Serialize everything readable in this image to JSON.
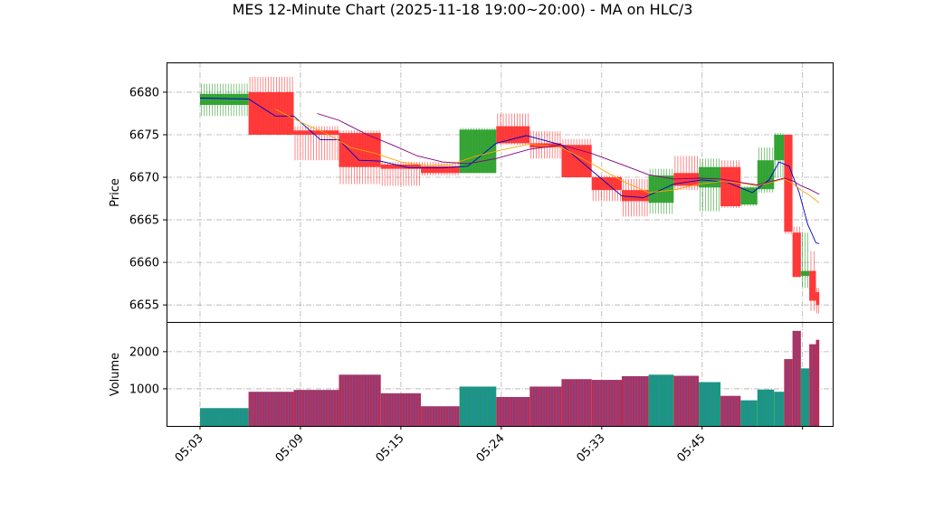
{
  "chart_data": {
    "type": "candlestick",
    "title": "MES 12-Minute Chart (2025-11-18 19:00~20:00) - MA on HLC/3",
    "price_panel": {
      "ylabel": "Price",
      "yticks": [
        6655,
        6660,
        6665,
        6670,
        6675,
        6680
      ],
      "ylim": [
        6653,
        6683.5
      ],
      "grid": true
    },
    "volume_panel": {
      "ylabel": "Volume",
      "yticks": [
        1000,
        2000
      ],
      "ylim": [
        0,
        2800
      ],
      "grid": true
    },
    "x_tick_labels": [
      "05:03",
      "05:09",
      "05:15",
      "05:24",
      "05:33",
      "05:45",
      ""
    ],
    "x_tick_positions": [
      0,
      6,
      12,
      18,
      24,
      30,
      36
    ],
    "xlim": [
      -2,
      37.8
    ],
    "colors": {
      "up": "#2ca02c",
      "down": "#ff3030",
      "up_volume": "#1a9a7a",
      "down_volume": "#b0305a",
      "ma_fast": "#0000cc",
      "ma_mid": "#ffa500",
      "ma_slow": "#800080"
    },
    "candles": [
      {
        "x0": 0,
        "x1": 2.9,
        "open": 6678.5,
        "high": 6681,
        "low": 6677.2,
        "close": 6679.8,
        "volume": 480
      },
      {
        "x0": 2.9,
        "x1": 5.6,
        "open": 6680,
        "high": 6681.8,
        "low": 6675,
        "close": 6675,
        "volume": 920
      },
      {
        "x0": 5.6,
        "x1": 8.3,
        "open": 6675.5,
        "high": 6676,
        "low": 6672,
        "close": 6675,
        "volume": 970
      },
      {
        "x0": 8.3,
        "x1": 10.8,
        "open": 6675.2,
        "high": 6675.5,
        "low": 6669.2,
        "close": 6671.2,
        "volume": 1380
      },
      {
        "x0": 10.8,
        "x1": 13.2,
        "open": 6671.5,
        "high": 6671.8,
        "low": 6669,
        "close": 6671,
        "volume": 880
      },
      {
        "x0": 13.2,
        "x1": 15.5,
        "open": 6671.3,
        "high": 6671.8,
        "low": 6670.2,
        "close": 6670.5,
        "volume": 530
      },
      {
        "x0": 15.5,
        "x1": 17.7,
        "open": 6670.5,
        "high": 6675.8,
        "low": 6670.5,
        "close": 6675.6,
        "volume": 1060
      },
      {
        "x0": 17.7,
        "x1": 19.7,
        "open": 6676,
        "high": 6677.5,
        "low": 6673.8,
        "close": 6674,
        "volume": 780
      },
      {
        "x0": 19.7,
        "x1": 21.6,
        "open": 6674,
        "high": 6675.4,
        "low": 6672.2,
        "close": 6673.5,
        "volume": 1060
      },
      {
        "x0": 21.6,
        "x1": 23.4,
        "open": 6673.8,
        "high": 6674.5,
        "low": 6670,
        "close": 6670,
        "volume": 1260
      },
      {
        "x0": 23.4,
        "x1": 25.2,
        "open": 6670,
        "high": 6670.2,
        "low": 6667.2,
        "close": 6668.5,
        "volume": 1240
      },
      {
        "x0": 25.2,
        "x1": 26.8,
        "open": 6668.5,
        "high": 6669.8,
        "low": 6665.4,
        "close": 6667.2,
        "volume": 1340
      },
      {
        "x0": 26.8,
        "x1": 28.3,
        "open": 6667,
        "high": 6671,
        "low": 6665.7,
        "close": 6670.2,
        "volume": 1380
      },
      {
        "x0": 28.3,
        "x1": 29.8,
        "open": 6670.5,
        "high": 6672.5,
        "low": 6668.5,
        "close": 6669,
        "volume": 1350
      },
      {
        "x0": 29.8,
        "x1": 31.1,
        "open": 6668.8,
        "high": 6672.2,
        "low": 6666,
        "close": 6671.2,
        "volume": 1180
      },
      {
        "x0": 31.1,
        "x1": 32.3,
        "open": 6671.2,
        "high": 6672,
        "low": 6666.4,
        "close": 6666.6,
        "volume": 810
      },
      {
        "x0": 32.3,
        "x1": 33.3,
        "open": 6666.8,
        "high": 6669,
        "low": 6666.6,
        "close": 6668.8,
        "volume": 690
      },
      {
        "x0": 33.3,
        "x1": 34.3,
        "open": 6668.6,
        "high": 6673.5,
        "low": 6668.2,
        "close": 6672,
        "volume": 980
      },
      {
        "x0": 34.3,
        "x1": 34.9,
        "open": 6672,
        "high": 6675.2,
        "low": 6670,
        "close": 6675,
        "volume": 920
      },
      {
        "x0": 34.9,
        "x1": 35.4,
        "open": 6675,
        "high": 6675,
        "low": 6663.3,
        "close": 6663.6,
        "volume": 1800
      },
      {
        "x0": 35.4,
        "x1": 35.9,
        "open": 6663.5,
        "high": 6664.2,
        "low": 6658.2,
        "close": 6658.3,
        "volume": 2560
      },
      {
        "x0": 35.9,
        "x1": 36.4,
        "open": 6658.4,
        "high": 6663.5,
        "low": 6657,
        "close": 6659,
        "volume": 1550
      },
      {
        "x0": 36.4,
        "x1": 36.8,
        "open": 6659,
        "high": 6661.3,
        "low": 6654.3,
        "close": 6655.5,
        "volume": 2200
      },
      {
        "x0": 36.8,
        "x1": 37.0,
        "open": 6656.5,
        "high": 6657,
        "low": 6654,
        "close": 6655,
        "volume": 2320
      }
    ],
    "moving_averages": [
      {
        "key": "ma_fast",
        "x": [
          0,
          2.9,
          4.5,
          5.6,
          7.2,
          8.3,
          9.5,
          10.8,
          12.5,
          14.5,
          16,
          17.7,
          19.5,
          21.6,
          23.4,
          25.2,
          26.5,
          28.3,
          30,
          31.5,
          33,
          34,
          34.6,
          35.2,
          35.8,
          36.3,
          36.8,
          37
        ],
        "y": [
          6679.3,
          6679.2,
          6677.2,
          6677.2,
          6674.4,
          6674.4,
          6672,
          6671.9,
          6671.1,
          6671.1,
          6671.3,
          6674,
          6674.9,
          6673.8,
          6670.8,
          6667.8,
          6667.6,
          6669.2,
          6669.7,
          6669.4,
          6668.2,
          6669.7,
          6671.8,
          6671.3,
          6668.2,
          6664.5,
          6662.3,
          6662.2
        ]
      },
      {
        "key": "ma_mid",
        "x": [
          4.5,
          6,
          7.5,
          9,
          10.5,
          12,
          13.5,
          15,
          16.5,
          18,
          19.7,
          21.6,
          23.4,
          25.2,
          26.8,
          28.3,
          29.8,
          31.1,
          32.3,
          33.3,
          34.3,
          34.9,
          35.4,
          35.9,
          36.4,
          37
        ],
        "y": [
          6678,
          6676.5,
          6675.2,
          6673.5,
          6672.8,
          6671.8,
          6671.4,
          6671.5,
          6672.5,
          6673.2,
          6673.9,
          6673.5,
          6671.6,
          6669.6,
          6668.2,
          6668.5,
          6669.2,
          6669.5,
          6669.3,
          6669,
          6669.5,
          6669.8,
          6669.3,
          6668.5,
          6667.9,
          6667
        ]
      },
      {
        "key": "ma_slow",
        "x": [
          7,
          8.3,
          10,
          11.5,
          13,
          14.5,
          16,
          17.7,
          19.7,
          21.6,
          23.4,
          25.2,
          26.8,
          28.3,
          29.8,
          31.1,
          32.3,
          33.3,
          34.3,
          34.9,
          35.4,
          35.9,
          36.4,
          37
        ],
        "y": [
          6677.5,
          6676.7,
          6675,
          6673.8,
          6672.5,
          6671.8,
          6671.6,
          6672.2,
          6673.3,
          6673.8,
          6672.8,
          6671.5,
          6670.3,
          6669.8,
          6669.9,
          6669.8,
          6669.4,
          6669.1,
          6669.6,
          6669.9,
          6669.6,
          6669,
          6668.6,
          6668
        ]
      }
    ]
  }
}
